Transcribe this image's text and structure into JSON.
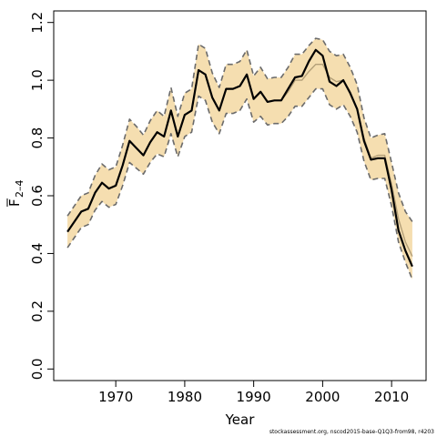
{
  "chart_data": {
    "type": "line",
    "xlabel": "Year",
    "ylabel": "F̅ 2–4",
    "xlim": [
      1961.0,
      2015.0
    ],
    "ylim": [
      -0.04,
      1.24
    ],
    "xticks": [
      1970,
      1980,
      1990,
      2000,
      2010
    ],
    "yticks": [
      0.0,
      0.2,
      0.4,
      0.6,
      0.8,
      1.0,
      1.2
    ],
    "ytick_labels": [
      "0.0",
      "0.2",
      "0.4",
      "0.6",
      "0.8",
      "1.0",
      "1.2"
    ],
    "colors": {
      "ci_fill": "#f5deb0",
      "main_line": "#000000",
      "ci_dashed": "#6b6b6b",
      "inner_line": "#b39f78"
    },
    "x": [
      1963,
      1964,
      1965,
      1966,
      1967,
      1968,
      1969,
      1970,
      1971,
      1972,
      1973,
      1974,
      1975,
      1976,
      1977,
      1978,
      1979,
      1980,
      1981,
      1982,
      1983,
      1984,
      1985,
      1986,
      1987,
      1988,
      1989,
      1990,
      1991,
      1992,
      1993,
      1994,
      1995,
      1996,
      1997,
      1998,
      1999,
      2000,
      2001,
      2002,
      2003,
      2004,
      2005,
      2006,
      2007,
      2008,
      2009,
      2010,
      2011,
      2012,
      2013
    ],
    "series": [
      {
        "values": [
          0.475,
          0.51,
          0.545,
          0.555,
          0.61,
          0.645,
          0.625,
          0.635,
          0.705,
          0.79,
          0.765,
          0.74,
          0.785,
          0.82,
          0.805,
          0.895,
          0.805,
          0.88,
          0.895,
          1.035,
          1.02,
          0.94,
          0.895,
          0.97,
          0.97,
          0.98,
          1.02,
          0.935,
          0.96,
          0.925,
          0.93,
          0.93,
          0.97,
          1.01,
          1.015,
          1.065,
          1.105,
          1.085,
          0.995,
          0.98,
          1.0,
          0.955,
          0.9,
          0.79,
          0.725,
          0.73,
          0.73,
          0.62,
          0.48,
          0.41,
          0.355
        ]
      },
      {
        "values": [
          0.475,
          0.51,
          0.545,
          0.555,
          0.61,
          0.645,
          0.625,
          0.635,
          0.705,
          0.79,
          0.765,
          0.74,
          0.785,
          0.82,
          0.805,
          0.895,
          0.805,
          0.88,
          0.895,
          1.035,
          1.02,
          0.94,
          0.895,
          0.97,
          0.97,
          0.98,
          1.02,
          0.935,
          0.96,
          0.925,
          0.93,
          0.93,
          0.96,
          1.0,
          1.0,
          1.03,
          1.055,
          1.055,
          1.01,
          0.995,
          1.0,
          0.96,
          0.9,
          0.8,
          0.73,
          0.74,
          0.74,
          0.64,
          0.52,
          0.44,
          0.39
        ]
      }
    ],
    "ci_lower": [
      0.42,
      0.455,
      0.49,
      0.5,
      0.55,
      0.58,
      0.56,
      0.57,
      0.635,
      0.715,
      0.695,
      0.675,
      0.715,
      0.745,
      0.735,
      0.815,
      0.735,
      0.805,
      0.82,
      0.945,
      0.93,
      0.855,
      0.815,
      0.885,
      0.885,
      0.895,
      0.935,
      0.855,
      0.875,
      0.845,
      0.85,
      0.85,
      0.875,
      0.91,
      0.91,
      0.94,
      0.97,
      0.97,
      0.915,
      0.9,
      0.915,
      0.875,
      0.82,
      0.72,
      0.655,
      0.66,
      0.66,
      0.565,
      0.44,
      0.37,
      0.31
    ],
    "ci_upper": [
      0.53,
      0.565,
      0.6,
      0.61,
      0.67,
      0.71,
      0.69,
      0.7,
      0.775,
      0.865,
      0.84,
      0.81,
      0.86,
      0.895,
      0.875,
      0.975,
      0.875,
      0.955,
      0.97,
      1.125,
      1.11,
      1.025,
      0.975,
      1.055,
      1.055,
      1.065,
      1.105,
      1.015,
      1.045,
      1.005,
      1.01,
      1.01,
      1.045,
      1.09,
      1.09,
      1.12,
      1.145,
      1.14,
      1.1,
      1.085,
      1.09,
      1.045,
      0.985,
      0.87,
      0.8,
      0.81,
      0.815,
      0.715,
      0.61,
      0.545,
      0.51
    ]
  },
  "footer": "stockassessment.org, nscod2015-base-Q1Q3-from98, r4203"
}
